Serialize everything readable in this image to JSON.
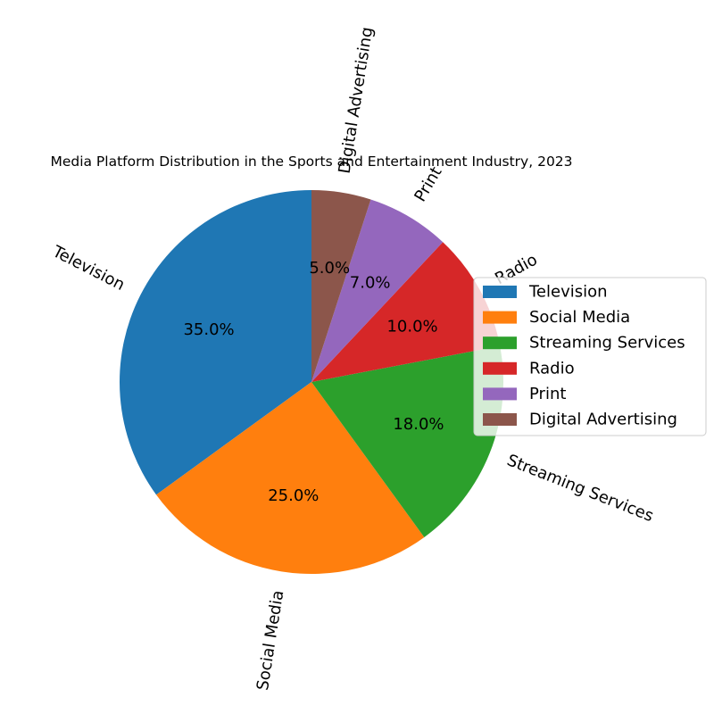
{
  "chart_data": {
    "type": "pie",
    "title": "Media Platform Distribution in the Sports and Entertainment Industry, 2023",
    "categories": [
      "Television",
      "Social Media",
      "Streaming Services",
      "Radio",
      "Print",
      "Digital Advertising"
    ],
    "values": [
      35,
      25,
      18,
      10,
      7,
      5
    ],
    "value_labels": [
      "35.0%",
      "25.0%",
      "18.0%",
      "10.0%",
      "7.0%",
      "5.0%"
    ],
    "colors": [
      "#1f77b4",
      "#ff7f0e",
      "#2ca02c",
      "#d62728",
      "#9467bd",
      "#8c564b"
    ],
    "start_angle_deg": 90,
    "direction": "counterclockwise",
    "rotated_labels": true,
    "legend_placement": "center-right",
    "legend": [
      "Television",
      "Social Media",
      "Streaming Services",
      "Radio",
      "Print",
      "Digital Advertising"
    ]
  }
}
